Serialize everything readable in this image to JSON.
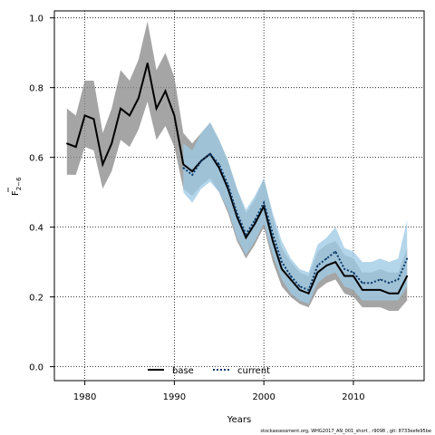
{
  "chart_data": {
    "type": "line",
    "xlabel": "Years",
    "ylabel_main": "F",
    "ylabel_sub": "2−6",
    "xlim": [
      1976.6,
      2017.9
    ],
    "ylim": [
      -0.04,
      1.02
    ],
    "xticks": [
      "1980",
      "1990",
      "2000",
      "2010"
    ],
    "xtick_values": [
      1980,
      1990,
      2000,
      2010
    ],
    "yticks": [
      "0.0",
      "0.2",
      "0.4",
      "0.6",
      "0.8",
      "1.0"
    ],
    "ytick_values": [
      0.0,
      0.2,
      0.4,
      0.6,
      0.8,
      1.0
    ],
    "grid": true,
    "legend_position": "bottom-center",
    "series": [
      {
        "name": "base",
        "line_style": "solid",
        "line_color": "#000000",
        "band_color": "#8c8c8c",
        "x": [
          1978,
          1979,
          1980,
          1981,
          1982,
          1983,
          1984,
          1985,
          1986,
          1987,
          1988,
          1989,
          1990,
          1991,
          1992,
          1993,
          1994,
          1995,
          1996,
          1997,
          1998,
          1999,
          2000,
          2001,
          2002,
          2003,
          2004,
          2005,
          2006,
          2007,
          2008,
          2009,
          2010,
          2011,
          2012,
          2013,
          2014,
          2015,
          2016
        ],
        "values": [
          0.64,
          0.63,
          0.72,
          0.71,
          0.58,
          0.64,
          0.74,
          0.72,
          0.77,
          0.87,
          0.74,
          0.79,
          0.72,
          0.58,
          0.56,
          0.59,
          0.61,
          0.57,
          0.51,
          0.43,
          0.37,
          0.41,
          0.46,
          0.36,
          0.28,
          0.25,
          0.22,
          0.21,
          0.27,
          0.29,
          0.3,
          0.26,
          0.26,
          0.22,
          0.22,
          0.22,
          0.21,
          0.21,
          0.26
        ],
        "lower": [
          0.55,
          0.55,
          0.63,
          0.62,
          0.51,
          0.56,
          0.65,
          0.63,
          0.68,
          0.76,
          0.65,
          0.69,
          0.63,
          0.51,
          0.49,
          0.52,
          0.54,
          0.5,
          0.44,
          0.36,
          0.31,
          0.35,
          0.4,
          0.3,
          0.23,
          0.2,
          0.18,
          0.17,
          0.22,
          0.24,
          0.25,
          0.21,
          0.2,
          0.17,
          0.17,
          0.17,
          0.16,
          0.16,
          0.19
        ],
        "upper": [
          0.74,
          0.72,
          0.82,
          0.82,
          0.67,
          0.74,
          0.85,
          0.82,
          0.88,
          0.99,
          0.85,
          0.9,
          0.83,
          0.67,
          0.64,
          0.67,
          0.7,
          0.65,
          0.59,
          0.51,
          0.44,
          0.48,
          0.54,
          0.43,
          0.34,
          0.3,
          0.27,
          0.26,
          0.33,
          0.35,
          0.36,
          0.32,
          0.31,
          0.27,
          0.27,
          0.28,
          0.27,
          0.27,
          0.34
        ]
      },
      {
        "name": "current",
        "line_style": "dotted",
        "line_color": "#0b3b6b",
        "band_color": "#9fcbe6",
        "x": [
          1991,
          1992,
          1993,
          1994,
          1995,
          1996,
          1997,
          1998,
          1999,
          2000,
          2001,
          2002,
          2003,
          2004,
          2005,
          2006,
          2007,
          2008,
          2009,
          2010,
          2011,
          2012,
          2013,
          2014,
          2015,
          2016
        ],
        "values": [
          0.57,
          0.55,
          0.59,
          0.61,
          0.58,
          0.52,
          0.44,
          0.38,
          0.42,
          0.47,
          0.38,
          0.3,
          0.26,
          0.23,
          0.22,
          0.29,
          0.31,
          0.33,
          0.28,
          0.27,
          0.24,
          0.24,
          0.25,
          0.24,
          0.25,
          0.31
        ],
        "lower": [
          0.5,
          0.47,
          0.51,
          0.53,
          0.5,
          0.45,
          0.37,
          0.32,
          0.36,
          0.41,
          0.32,
          0.25,
          0.21,
          0.19,
          0.18,
          0.24,
          0.26,
          0.27,
          0.23,
          0.22,
          0.19,
          0.19,
          0.19,
          0.19,
          0.19,
          0.23
        ],
        "upper": [
          0.64,
          0.62,
          0.67,
          0.7,
          0.65,
          0.59,
          0.51,
          0.45,
          0.49,
          0.54,
          0.44,
          0.36,
          0.31,
          0.28,
          0.27,
          0.35,
          0.37,
          0.4,
          0.34,
          0.33,
          0.3,
          0.3,
          0.31,
          0.3,
          0.31,
          0.42
        ]
      }
    ]
  },
  "footer_text": "stockassessment.org, WHG2017_AN_001_short , r9098 , git: 8733eefe95be"
}
